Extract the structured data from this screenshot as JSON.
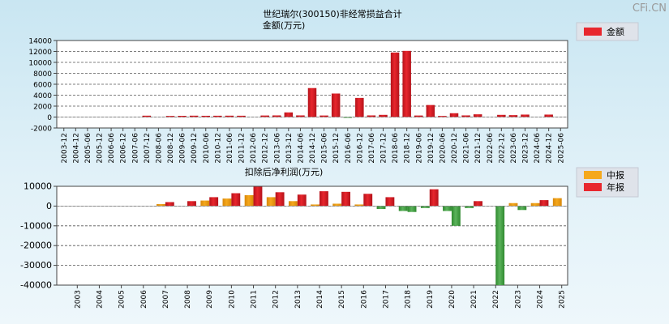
{
  "watermark": "CFi.CN",
  "colors": {
    "red": "#e8262d",
    "red_dark": "#b5121a",
    "orange": "#f5a81c",
    "orange_dark": "#d8880a",
    "green": "#2f8a2f",
    "green_light": "#5cb35c"
  },
  "chart_data": [
    {
      "type": "bar",
      "title": "世纪瑞尔(300150)非经常损益合计",
      "subtitle": "金额(万元)",
      "legend": [
        {
          "name": "金额",
          "color": "#e8262d"
        }
      ],
      "legend_placement": "top-right",
      "grid": true,
      "ylim": [
        -2000,
        14000
      ],
      "yticks": [
        -2000,
        0,
        2000,
        4000,
        6000,
        8000,
        10000,
        12000,
        14000
      ],
      "categories": [
        "2003-12",
        "2004-12",
        "2005-06",
        "2005-12",
        "2006-06",
        "2006-12",
        "2007-06",
        "2007-12",
        "2008-06",
        "2008-12",
        "2009-06",
        "2009-12",
        "2010-06",
        "2010-12",
        "2011-06",
        "2011-12",
        "2012-06",
        "2012-12",
        "2013-06",
        "2013-12",
        "2014-06",
        "2014-12",
        "2015-06",
        "2015-12",
        "2016-06",
        "2016-12",
        "2017-06",
        "2017-12",
        "2018-06",
        "2018-12",
        "2019-06",
        "2019-12",
        "2020-06",
        "2020-12",
        "2021-06",
        "2021-12",
        "2022-06",
        "2022-12",
        "2023-06",
        "2023-12",
        "2024-06",
        "2024-12",
        "2025-06"
      ],
      "values": [
        0,
        0,
        0,
        0,
        0,
        0,
        0,
        250,
        0,
        200,
        220,
        250,
        230,
        240,
        250,
        240,
        0,
        280,
        300,
        850,
        300,
        5300,
        280,
        4300,
        -150,
        3500,
        300,
        400,
        11800,
        12100,
        280,
        2200,
        200,
        700,
        300,
        500,
        0,
        400,
        350,
        450,
        0,
        450,
        0
      ]
    },
    {
      "type": "bar",
      "title": "扣除后净利润(万元)",
      "legend": [
        {
          "name": "中报",
          "color": "#f5a81c"
        },
        {
          "name": "年报",
          "color": "#e8262d"
        }
      ],
      "legend_placement": "top-right",
      "grid": true,
      "ylim": [
        -40000,
        10000
      ],
      "yticks": [
        -40000,
        -30000,
        -20000,
        -10000,
        0,
        10000
      ],
      "categories": [
        "2003",
        "2004",
        "2005",
        "2006",
        "2007",
        "2008",
        "2009",
        "2010",
        "2011",
        "2012",
        "2013",
        "2014",
        "2015",
        "2016",
        "2017",
        "2018",
        "2019",
        "2020",
        "2021",
        "2022",
        "2023",
        "2024",
        "2025"
      ],
      "series": [
        {
          "name": "中报",
          "values": [
            0,
            0,
            0,
            0,
            1000,
            0,
            2800,
            3800,
            5500,
            4500,
            2500,
            800,
            1200,
            800,
            -1500,
            -2500,
            -1000,
            -2500,
            -1000,
            0,
            1500,
            1500,
            4000
          ]
        },
        {
          "name": "年报",
          "values": [
            0,
            0,
            0,
            0,
            2000,
            2500,
            4500,
            6500,
            9800,
            7000,
            5800,
            7500,
            7200,
            6200,
            4500,
            -3000,
            8500,
            -10000,
            2500,
            -40000,
            -2000,
            3000,
            null
          ]
        }
      ]
    }
  ]
}
